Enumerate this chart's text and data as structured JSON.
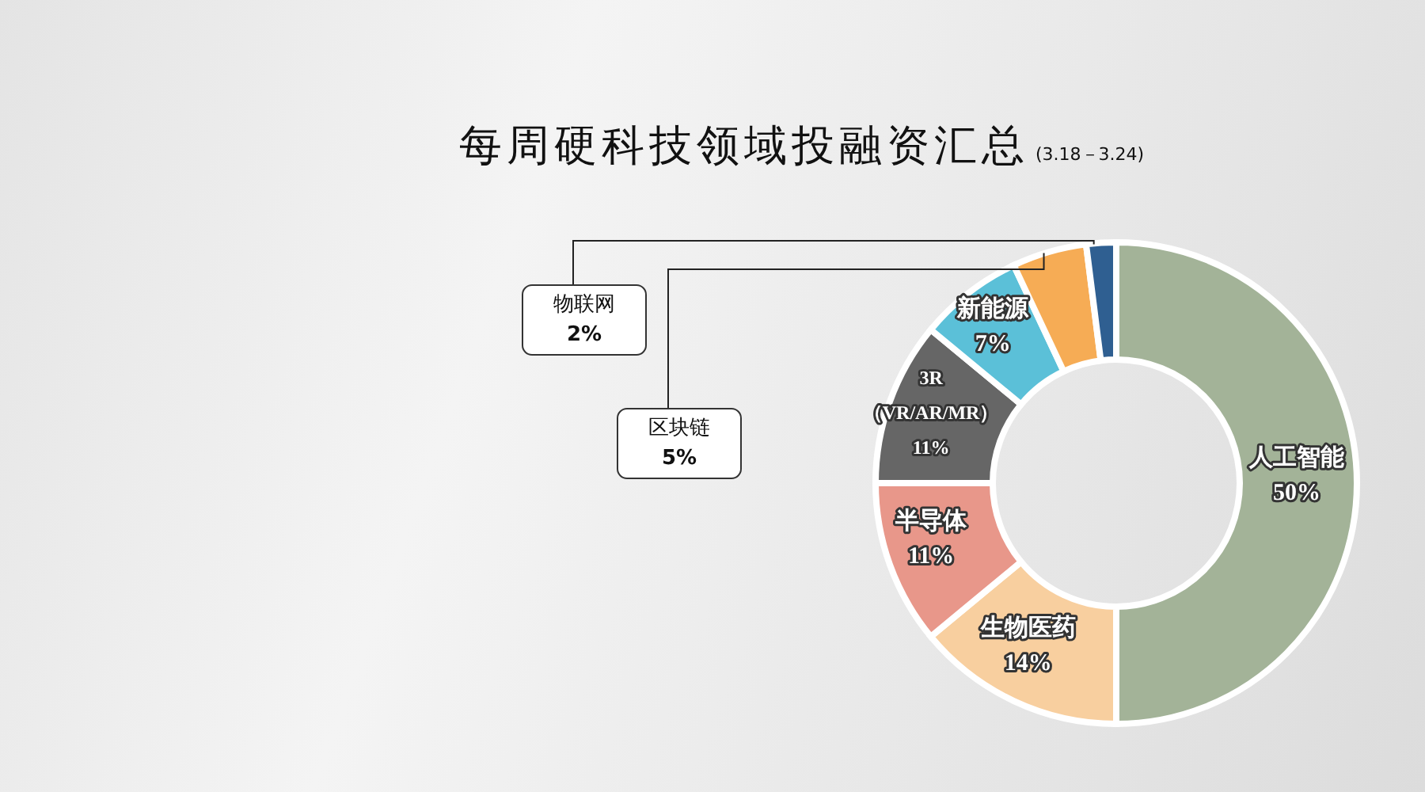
{
  "chart_data": {
    "type": "donut",
    "title": "每周硬科技领域投融资汇总",
    "subtitle": "(3.18－3.24)",
    "categories": [
      "人工智能",
      "生物医药",
      "半导体",
      "3R（VR/AR/MR）",
      "新能源",
      "区块链",
      "物联网"
    ],
    "values": [
      50,
      14,
      11,
      11,
      7,
      5,
      2
    ],
    "colors": [
      "#a3b398",
      "#f8cf9f",
      "#e8978a",
      "#666666",
      "#5bc0d8",
      "#f6ac55",
      "#2f5f91"
    ],
    "value_labels": [
      "50%",
      "14%",
      "11%",
      "11%",
      "7%",
      "5%",
      "2%"
    ],
    "legend": false
  }
}
